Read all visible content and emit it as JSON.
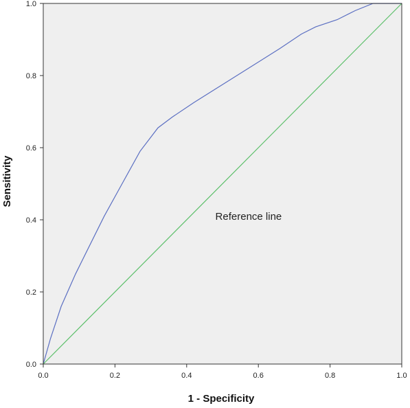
{
  "chart_data": {
    "type": "line",
    "xlabel": "1 - Specificity",
    "ylabel": "Sensitivity",
    "xlim": [
      0,
      1
    ],
    "ylim": [
      0,
      1
    ],
    "x_ticks": [
      "0.0",
      "0.2",
      "0.4",
      "0.6",
      "0.8",
      "1.0"
    ],
    "y_ticks": [
      "0.0",
      "0.2",
      "0.4",
      "0.6",
      "0.8",
      "1.0"
    ],
    "grid": false,
    "legend": "none",
    "background_color": "#efefef",
    "series": [
      {
        "color": "#5b6fc2",
        "x": [
          0.0,
          0.02,
          0.05,
          0.09,
          0.12,
          0.17,
          0.22,
          0.27,
          0.32,
          0.36,
          0.42,
          0.5,
          0.58,
          0.66,
          0.72,
          0.76,
          0.82,
          0.87,
          0.92,
          1.0
        ],
        "y": [
          0.0,
          0.07,
          0.16,
          0.25,
          0.31,
          0.41,
          0.5,
          0.59,
          0.655,
          0.685,
          0.725,
          0.775,
          0.825,
          0.875,
          0.915,
          0.935,
          0.955,
          0.98,
          1.0,
          1.0
        ]
      },
      {
        "color": "#5cbf6a",
        "x": [
          0.0,
          1.0
        ],
        "y": [
          0.0,
          1.0
        ]
      }
    ],
    "annotations": [
      {
        "text": "Reference line",
        "x": 0.48,
        "y": 0.41
      }
    ]
  }
}
